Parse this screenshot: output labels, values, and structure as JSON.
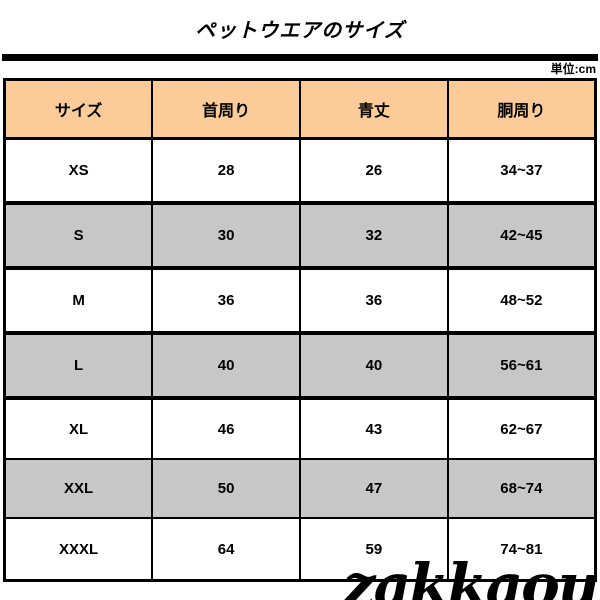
{
  "page": {
    "title": "ペットウエアのサイズ",
    "unit_label": "単位:cm",
    "watermark": "zakkaou"
  },
  "colors": {
    "header_bg": "#fbcc99",
    "row_gray_bg": "#c7c7c7",
    "row_white_bg": "#ffffff",
    "border": "#000000",
    "text": "#000000"
  },
  "table": {
    "headers": [
      "サイズ",
      "首周り",
      "青丈",
      "胴周り"
    ],
    "rows": [
      {
        "size": "XS",
        "neck": "28",
        "back": "26",
        "girth": "34~37"
      },
      {
        "size": "S",
        "neck": "30",
        "back": "32",
        "girth": "42~45"
      },
      {
        "size": "M",
        "neck": "36",
        "back": "36",
        "girth": "48~52"
      },
      {
        "size": "L",
        "neck": "40",
        "back": "40",
        "girth": "56~61"
      },
      {
        "size": "XL",
        "neck": "46",
        "back": "43",
        "girth": "62~67"
      },
      {
        "size": "XXL",
        "neck": "50",
        "back": "47",
        "girth": "68~74"
      },
      {
        "size": "XXXL",
        "neck": "64",
        "back": "59",
        "girth": "74~81"
      }
    ]
  }
}
